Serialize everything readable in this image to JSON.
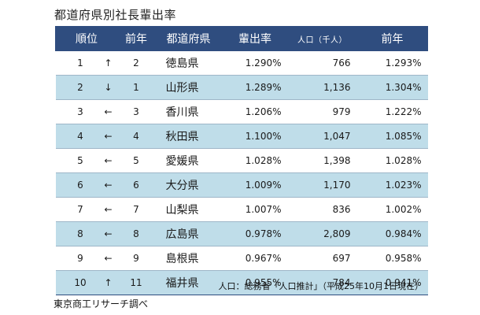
{
  "title": "都道府県別社長輩出率",
  "headers": {
    "rank": "順位",
    "prev_rank": "前年",
    "prefecture": "都道府県",
    "rate": "輩出率",
    "population": "人口（千人）",
    "prev_rate": "前年"
  },
  "rows": [
    {
      "rank": "1",
      "arrow": "↑",
      "prev_rank": "2",
      "prefecture": "徳島県",
      "rate": "1.290%",
      "population": "766",
      "prev_rate": "1.293%"
    },
    {
      "rank": "2",
      "arrow": "↓",
      "prev_rank": "1",
      "prefecture": "山形県",
      "rate": "1.289%",
      "population": "1,136",
      "prev_rate": "1.304%"
    },
    {
      "rank": "3",
      "arrow": "←",
      "prev_rank": "3",
      "prefecture": "香川県",
      "rate": "1.206%",
      "population": "979",
      "prev_rate": "1.222%"
    },
    {
      "rank": "4",
      "arrow": "←",
      "prev_rank": "4",
      "prefecture": "秋田県",
      "rate": "1.100%",
      "population": "1,047",
      "prev_rate": "1.085%"
    },
    {
      "rank": "5",
      "arrow": "←",
      "prev_rank": "5",
      "prefecture": "愛媛県",
      "rate": "1.028%",
      "population": "1,398",
      "prev_rate": "1.028%"
    },
    {
      "rank": "6",
      "arrow": "←",
      "prev_rank": "6",
      "prefecture": "大分県",
      "rate": "1.009%",
      "population": "1,170",
      "prev_rate": "1.023%"
    },
    {
      "rank": "7",
      "arrow": "←",
      "prev_rank": "7",
      "prefecture": "山梨県",
      "rate": "1.007%",
      "population": "836",
      "prev_rate": "1.002%"
    },
    {
      "rank": "8",
      "arrow": "←",
      "prev_rank": "8",
      "prefecture": "広島県",
      "rate": "0.978%",
      "population": "2,809",
      "prev_rate": "0.984%"
    },
    {
      "rank": "9",
      "arrow": "←",
      "prev_rank": "9",
      "prefecture": "島根県",
      "rate": "0.967%",
      "population": "697",
      "prev_rate": "0.958%"
    },
    {
      "rank": "10",
      "arrow": "↑",
      "prev_rank": "11",
      "prefecture": "福井県",
      "rate": "0.955%",
      "population": "784",
      "prev_rate": "0.941%"
    }
  ],
  "source_note": "人口：総務省「人口推計」（平成25年10月1日現在）",
  "credit": "東京商工リサーチ調べ",
  "colors": {
    "header_bg": "#2f4d7f",
    "stripe_bg": "#bfdde9",
    "row_bg": "#ffffff"
  }
}
